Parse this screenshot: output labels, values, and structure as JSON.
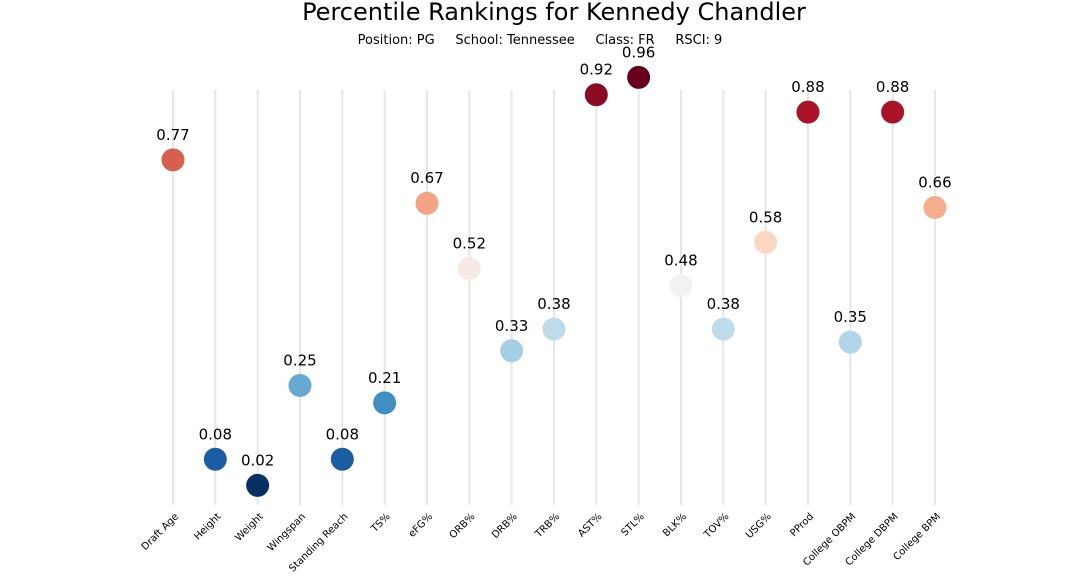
{
  "chart_data": {
    "type": "scatter",
    "title": "Percentile Rankings for Kennedy Chandler",
    "subtitle": "Position: PG     School: Tennessee     Class: FR     RSCI: 9",
    "categories": [
      "Draft Age",
      "Height",
      "Weight",
      "Wingspan",
      "Standing Reach",
      "TS%",
      "eFG%",
      "ORB%",
      "DRB%",
      "TRB%",
      "AST%",
      "STL%",
      "BLK%",
      "TOV%",
      "USG%",
      "PProd",
      "College OBPM",
      "College DBPM",
      "College BPM"
    ],
    "values": [
      0.77,
      0.08,
      0.02,
      0.25,
      0.08,
      0.21,
      0.67,
      0.52,
      0.33,
      0.38,
      0.92,
      0.96,
      0.48,
      0.38,
      0.58,
      0.88,
      0.35,
      0.88,
      0.66
    ],
    "value_labels": [
      "0.77",
      "0.08",
      "0.02",
      "0.25",
      "0.08",
      "0.21",
      "0.67",
      "0.52",
      "0.33",
      "0.38",
      "0.92",
      "0.96",
      "0.48",
      "0.38",
      "0.58",
      "0.88",
      "0.35",
      "0.88",
      "0.66"
    ],
    "ylim": [
      0,
      1
    ],
    "xlabel": "",
    "ylabel": "",
    "grid": "vertical",
    "colormap": "RdBu_r",
    "colors": [
      "#d6604d",
      "#1c5ca3",
      "#053061",
      "#64a9d2",
      "#1c5ca3",
      "#3f8fc3",
      "#f3a381",
      "#f7e9e3",
      "#a6cee4",
      "#bddbe9",
      "#8a0b24",
      "#67001f",
      "#f2f2f2",
      "#bddbe9",
      "#fcd8c3",
      "#aa1328",
      "#b1d4e7",
      "#aa1328",
      "#f4ae8b"
    ]
  }
}
